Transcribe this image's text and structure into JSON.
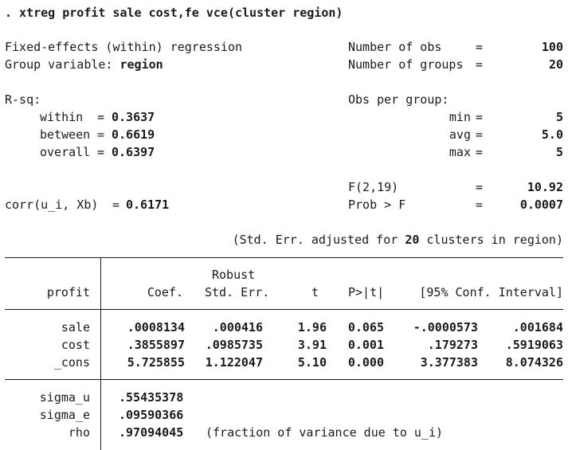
{
  "command": ". xtreg profit sale cost,fe vce(cluster region)",
  "header": {
    "model_line": "Fixed-effects (within) regression",
    "group_var_label": "Group variable:",
    "group_var": "region",
    "n_obs_label": "Number of obs",
    "n_obs": "100",
    "n_groups_label": "Number of groups",
    "n_groups": "20",
    "rsq_label": "R-sq:",
    "within_label": "within",
    "within": "0.3637",
    "between_label": "between",
    "between": "0.6619",
    "overall_label": "overall",
    "overall": "0.6397",
    "obs_per_group_label": "Obs per group:",
    "min_label": "min",
    "min": "5",
    "avg_label": "avg",
    "avg": "5.0",
    "max_label": "max",
    "max": "5",
    "f_label": "F(2,19)",
    "f_value": "10.92",
    "prob_label": "Prob > F",
    "prob_value": "0.0007",
    "corr_label": "corr(u_i, Xb)",
    "corr_value": "0.6171",
    "eq": "=",
    "se_note_prefix": "(Std. Err. adjusted for ",
    "se_note_clusters": "20",
    "se_note_suffix": " clusters in region)"
  },
  "table": {
    "robust_label": "Robust",
    "columns": {
      "depvar": "profit",
      "coef": "Coef.",
      "se": "Std. Err.",
      "t": "t",
      "p": "P>|t|",
      "ci": "[95% Conf. Interval]"
    },
    "rows": [
      {
        "var": "sale",
        "coef": ".0008134",
        "se": ".000416",
        "t": "1.96",
        "p": "0.065",
        "lo": "-.0000573",
        "hi": ".001684"
      },
      {
        "var": "cost",
        "coef": ".3855897",
        "se": ".0985735",
        "t": "3.91",
        "p": "0.001",
        "lo": ".179273",
        "hi": ".5919063"
      },
      {
        "var": "_cons",
        "coef": "5.725855",
        "se": "1.122047",
        "t": "5.10",
        "p": "0.000",
        "lo": "3.377383",
        "hi": "8.074326"
      }
    ],
    "sigma_u_label": "sigma_u",
    "sigma_u": ".55435378",
    "sigma_e_label": "sigma_e",
    "sigma_e": ".09590366",
    "rho_label": "rho",
    "rho": ".97094045",
    "rho_note": "(fraction of variance due to u_i)"
  }
}
